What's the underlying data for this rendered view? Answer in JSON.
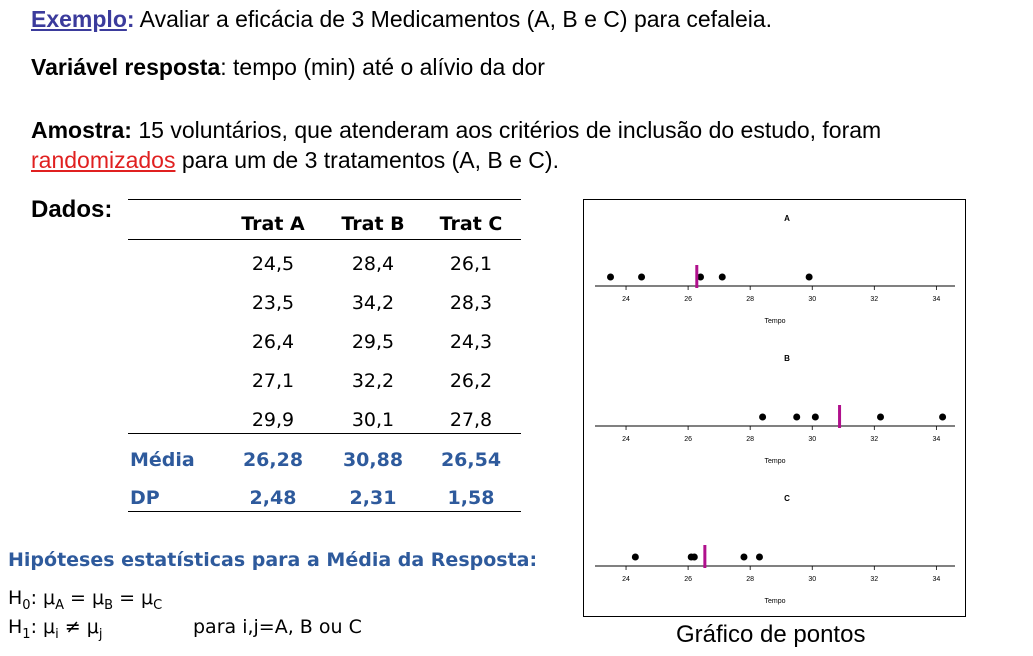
{
  "intro": {
    "example_label": "Exemplo",
    "example_colon": ":",
    "example_text": " Avaliar a eficácia de 3 Medicamentos (A, B e C) para cefaleia.",
    "response_label": "Variável resposta",
    "response_text": ": tempo (min) até o alívio da dor",
    "sample_label": "Amostra:",
    "sample_text": " 15 voluntários, que atenderam aos critérios de inclusão do estudo, foram",
    "randomized_word": "randomizados",
    "sample_text2": " para um de 3 tratamentos (A, B e C)."
  },
  "table": {
    "label": "Dados:",
    "headers": [
      "Trat A",
      "Trat B",
      "Trat C"
    ],
    "rows": [
      [
        "24,5",
        "28,4",
        "26,1"
      ],
      [
        "23,5",
        "34,2",
        "28,3"
      ],
      [
        "26,4",
        "29,5",
        "24,3"
      ],
      [
        "27,1",
        "32,2",
        "26,2"
      ],
      [
        "29,9",
        "30,1",
        "27,8"
      ]
    ],
    "mean_label": "Média",
    "means": [
      "26,28",
      "30,88",
      "26,54"
    ],
    "sd_label": "DP",
    "sds": [
      "2,48",
      "2,31",
      "1,58"
    ]
  },
  "hypotheses": {
    "title": "Hipóteses estatísticas para a Média da Resposta:",
    "h0": "H0: μA = μB = μC",
    "h1": "H1: μi ≠ μj",
    "h1_condition": "para i,j=A, B ou C"
  },
  "chart_data": {
    "type": "scatter",
    "caption": "Gráfico de pontos",
    "xlabel": "Tempo",
    "xlim": [
      23,
      34.6
    ],
    "xticks": [
      24,
      26,
      28,
      30,
      32,
      34
    ],
    "mean_marker_color": "#b0108c",
    "point_color": "#000000",
    "panels": [
      {
        "name": "A",
        "values": [
          24.5,
          23.5,
          26.4,
          27.1,
          29.9
        ],
        "mean": 26.28
      },
      {
        "name": "B",
        "values": [
          28.4,
          34.2,
          29.5,
          32.2,
          30.1
        ],
        "mean": 30.88
      },
      {
        "name": "C",
        "values": [
          26.1,
          28.3,
          24.3,
          26.2,
          27.8
        ],
        "mean": 26.54
      }
    ]
  }
}
